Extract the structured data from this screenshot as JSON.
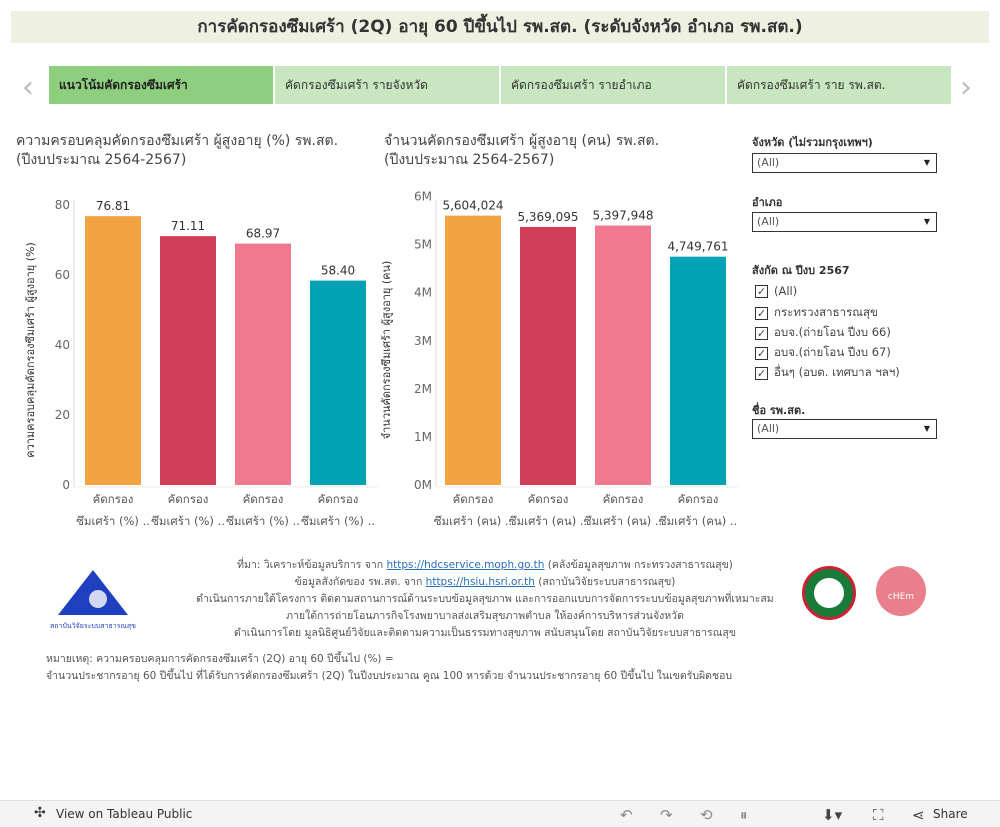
{
  "title": "การคัดกรองซึมเศร้า (2Q) อายุ 60 ปีขึ้นไป รพ.สต. (ระดับจังหวัด อำเภอ รพ.สต.)",
  "tabs": [
    "แนวโน้มคัดกรองซึมเศร้า",
    "คัดกรองซึมเศร้า  รายจังหวัด",
    "คัดกรองซึมเศร้า  รายอำเภอ",
    "คัดกรองซึมเศร้า ราย รพ.สต."
  ],
  "chart_data": [
    {
      "type": "bar",
      "title": "ความครอบคลุมคัดกรองซึมเศร้า ผู้สูงอายุ (%) รพ.สต.",
      "subtitle": "(ปีงบประมาณ 2564-2567)",
      "ylabel": "ความครอบคลุมคัดกรองซึมเศร้า ผู้สูงอายุ (%)",
      "ylim": [
        0,
        80
      ],
      "ticks": [
        0,
        20,
        40,
        60,
        80
      ],
      "tick_labels": [
        "0",
        "20",
        "40",
        "60",
        "80"
      ],
      "categories": [
        [
          "คัดกรอง",
          "ซึมเศร้า (%) .."
        ],
        [
          "คัดกรอง",
          "ซึมเศร้า (%) .."
        ],
        [
          "คัดกรอง",
          "ซึมเศร้า (%) .."
        ],
        [
          "คัดกรอง",
          "ซึมเศร้า (%) .."
        ]
      ],
      "values": [
        76.81,
        71.11,
        68.97,
        58.4
      ],
      "labels": [
        "76.81",
        "71.11",
        "68.97",
        "58.40"
      ],
      "colors": [
        "#f2a444",
        "#d13d56",
        "#f07990",
        "#00a2b3"
      ]
    },
    {
      "type": "bar",
      "title": "จำนวนคัดกรองซึมเศร้า ผู้สูงอายุ (คน) รพ.สต.",
      "subtitle": "(ปีงบประมาณ 2564-2567)",
      "ylabel": "จำนวนคัดกรองซึมเศร้า ผู้สูงอายุ (คน)",
      "ylim": [
        0,
        6000000
      ],
      "ticks": [
        0,
        1000000,
        2000000,
        3000000,
        4000000,
        5000000,
        6000000
      ],
      "tick_labels": [
        "0M",
        "1M",
        "2M",
        "3M",
        "4M",
        "5M",
        "6M"
      ],
      "categories": [
        [
          "คัดกรอง",
          "ซึมเศร้า (คน) .."
        ],
        [
          "คัดกรอง",
          "ซึมเศร้า (คน) .."
        ],
        [
          "คัดกรอง",
          "ซึมเศร้า (คน) .."
        ],
        [
          "คัดกรอง",
          "ซึมเศร้า (คน) .."
        ]
      ],
      "values": [
        5604024,
        5369095,
        5397948,
        4749761
      ],
      "labels": [
        "5,604,024",
        "5,369,095",
        "5,397,948",
        "4,749,761"
      ],
      "colors": [
        "#f2a444",
        "#d13d56",
        "#f07990",
        "#00a2b3"
      ]
    }
  ],
  "filters": {
    "province_label": "จังหวัด (ไม่รวมกรุงเทพฯ)",
    "province_value": "(All)",
    "district_label": "อำเภอ",
    "district_value": "(All)",
    "affil_label": "สังกัด ณ ปีงบ 2567",
    "affil_options": [
      "(All)",
      "กระทรวงสาธารณสุข",
      "อบจ.(ถ่ายโอน ปีงบ 66)",
      "อบจ.(ถ่ายโอน ปีงบ 67)",
      "อื่นๆ (อบต. เทศบาล ฯลฯ)"
    ],
    "hospital_label": "ชื่อ รพ.สต.",
    "hospital_value": "(All)"
  },
  "footer": {
    "l1a": "ที่มา: วิเคราะห์ข้อมูลบริการ จาก ",
    "l1link": "https://hdcservice.moph.go.th",
    "l1b": " (คลังข้อมูลสุขภาพ กระทรวงสาธารณสุข)",
    "l2a": "ข้อมูลสังกัดของ รพ.สต. จาก ",
    "l2link": "https://hsiu.hsri.or.th",
    "l2b": " (สถาบันวิจัยระบบสาธารณสุข)",
    "l3": "ดำเนินการภายใต้โครงการ ติดตามสถานการณ์ด้านระบบข้อมูลสุขภาพ และการออกแบบการจัดการระบบข้อมูลสุขภาพที่เหมาะสม",
    "l4": "ภายใต้การถ่ายโอนภารกิจโรงพยาบาลส่งเสริมสุขภาพตำบล ให้องค์การบริหารส่วนจังหวัด",
    "l5": "ดำเนินการโดย มูลนิธิศูนย์วิจัยและติดตามความเป็นธรรมทางสุขภาพ สนับสนุนโดย สถาบันวิจัยระบบสาธารณสุข",
    "note1": "หมายเหตุ: ความครอบคลุมการคัดกรองซึมเศร้า (2Q) อายุ 60 ปีขึ้นไป (%) =",
    "note2": "จำนวนประชากรอายุ 60 ปีขึ้นไป ที่ได้รับการคัดกรองซึมเศร้า (2Q) ในปีงบประมาณ คูณ 100 หารด้วย จำนวนประชากรอายุ 60 ปีขึ้นไป ในเขตรับผิดชอบ",
    "logo_left": "สถาบันวิจัยระบบสาธารณสุข",
    "logo_right": "cHEm"
  },
  "bottom": {
    "view_label": "View on Tableau Public",
    "share_label": "Share"
  }
}
